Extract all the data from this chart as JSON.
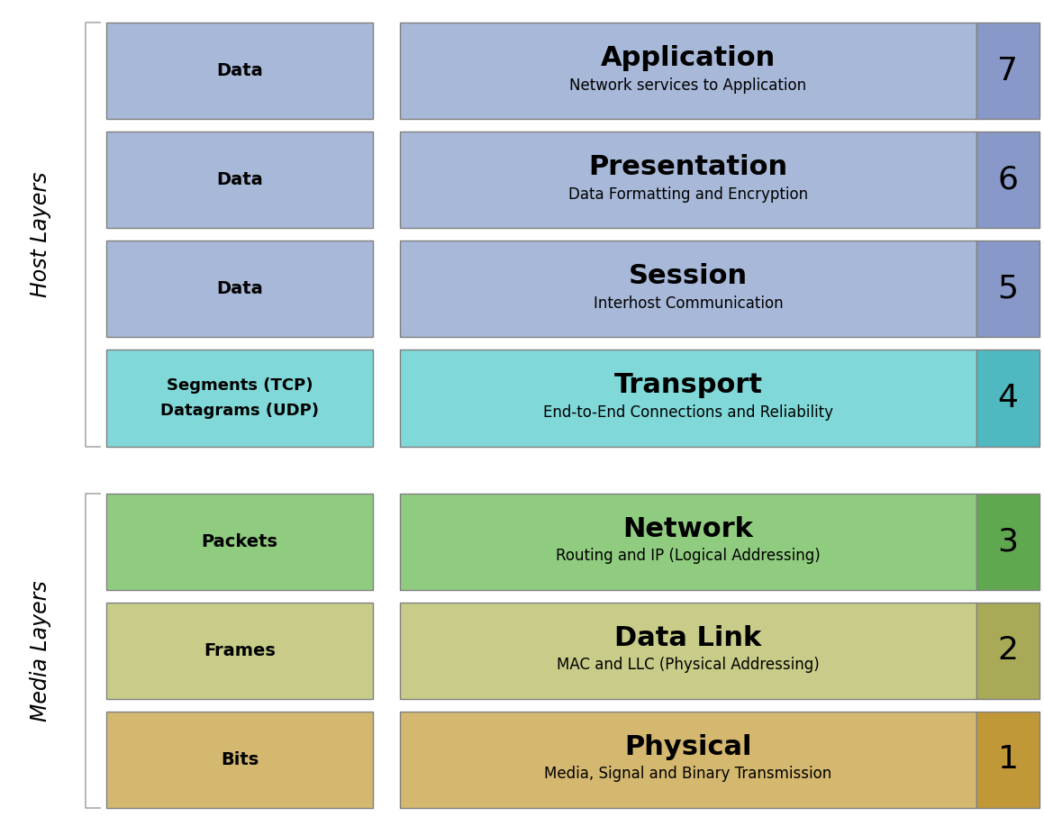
{
  "layers": [
    {
      "num": 7,
      "name": "Application",
      "desc": "Network services to Application",
      "pdu": "Data",
      "pdu_line2": "",
      "box_color": "#a8b8d8",
      "num_color": "#8898c8",
      "group": "host"
    },
    {
      "num": 6,
      "name": "Presentation",
      "desc": "Data Formatting and Encryption",
      "pdu": "Data",
      "pdu_line2": "",
      "box_color": "#a8b8d8",
      "num_color": "#8898c8",
      "group": "host"
    },
    {
      "num": 5,
      "name": "Session",
      "desc": "Interhost Communication",
      "pdu": "Data",
      "pdu_line2": "",
      "box_color": "#a8b8d8",
      "num_color": "#8898c8",
      "group": "host"
    },
    {
      "num": 4,
      "name": "Transport",
      "desc": "End-to-End Connections and Reliability",
      "pdu": "Segments (TCP)",
      "pdu_line2": "Datagrams (UDP)",
      "box_color": "#80d8d8",
      "num_color": "#50b8c0",
      "group": "host"
    },
    {
      "num": 3,
      "name": "Network",
      "desc": "Routing and IP (Logical Addressing)",
      "pdu": "Packets",
      "pdu_line2": "",
      "box_color": "#90cc80",
      "num_color": "#60a850",
      "group": "media"
    },
    {
      "num": 2,
      "name": "Data Link",
      "desc": "MAC and LLC (Physical Addressing)",
      "pdu": "Frames",
      "pdu_line2": "",
      "box_color": "#c8cc88",
      "num_color": "#a8aa58",
      "group": "media"
    },
    {
      "num": 1,
      "name": "Physical",
      "desc": "Media, Signal and Binary Transmission",
      "pdu": "Bits",
      "pdu_line2": "",
      "box_color": "#d4b870",
      "num_color": "#c09838",
      "group": "media"
    }
  ],
  "bg_color": "#ffffff",
  "host_label": "Host Layers",
  "media_label": "Media Layers",
  "edge_color": "#808080",
  "bracket_color": "#aaaaaa"
}
